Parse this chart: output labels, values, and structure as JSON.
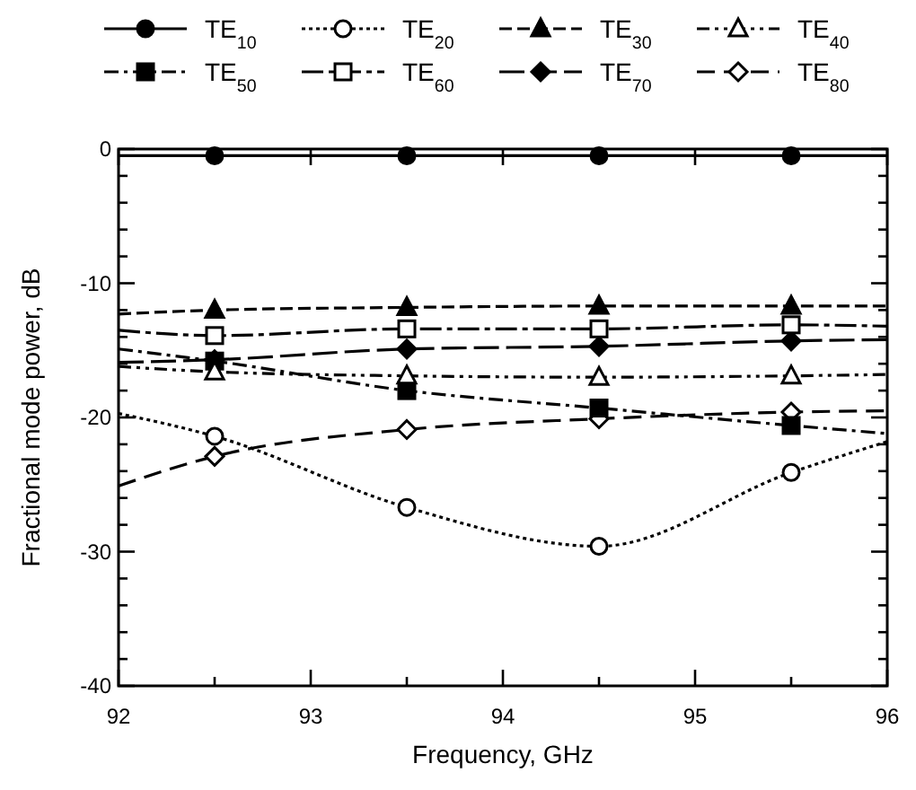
{
  "chart_data": {
    "type": "line",
    "xlabel": "Frequency, GHz",
    "ylabel": "Fractional mode power, dB",
    "x": [
      92,
      92.5,
      93.5,
      94.5,
      95.5,
      96
    ],
    "xlim": [
      92,
      96
    ],
    "xticks": [
      92,
      {
        "value": 92.5,
        "label": null
      },
      93,
      {
        "value": 93.5,
        "label": null
      },
      94,
      {
        "value": 94.5,
        "label": null
      },
      95,
      {
        "value": 95.5,
        "label": null
      },
      96
    ],
    "ylim": [
      -40,
      0
    ],
    "yticks": [
      -40,
      {
        "value": -38,
        "label": null
      },
      {
        "value": -36,
        "label": null
      },
      {
        "value": -34,
        "label": null
      },
      {
        "value": -32,
        "label": null
      },
      -30,
      {
        "value": -28,
        "label": null
      },
      {
        "value": -26,
        "label": null
      },
      {
        "value": -24,
        "label": null
      },
      {
        "value": -22,
        "label": null
      },
      -20,
      {
        "value": -18,
        "label": null
      },
      {
        "value": -16,
        "label": null
      },
      {
        "value": -14,
        "label": null
      },
      {
        "value": -12,
        "label": null
      },
      -10,
      {
        "value": -8,
        "label": null
      },
      {
        "value": -6,
        "label": null
      },
      {
        "value": -4,
        "label": null
      },
      {
        "value": -2,
        "label": null
      },
      0
    ],
    "grid": false,
    "legend": "top",
    "series": [
      {
        "name": "TE$_{10}$",
        "color": "#000000",
        "marker": "circle",
        "line_style": "solid",
        "values": [
          -0.5,
          -0.5,
          -0.5,
          -0.5,
          -0.5,
          -0.5
        ]
      },
      {
        "name": "TE$_{20}$",
        "color": "#000000",
        "marker": "circle",
        "line_style": "dotted",
        "values": [
          -19.7,
          -21.4,
          -26.7,
          -29.6,
          -24.1,
          -21.8
        ]
      },
      {
        "name": "TE$_{30}$",
        "color": "#000000",
        "marker": "triangle",
        "line_style": "dashed",
        "values": [
          -12.3,
          -12,
          -11.8,
          -11.7,
          -11.7,
          -11.7
        ]
      },
      {
        "name": "TE$_{40}$",
        "color": "#000000",
        "marker": "triangle",
        "line_style": "dashed",
        "values": [
          -16.2,
          -16.6,
          -16.9,
          -17,
          -16.9,
          -16.8
        ]
      },
      {
        "name": "TE$_{50}$",
        "color": "#000000",
        "marker": "square",
        "line_style": "dashed",
        "values": [
          -14.9,
          -15.8,
          -18,
          -19.3,
          -20.6,
          -21.2
        ]
      },
      {
        "name": "TE$_{60}$",
        "color": "#000000",
        "marker": "square",
        "line_style": "dashed",
        "values": [
          -13.5,
          -13.9,
          -13.4,
          -13.4,
          -13.1,
          -13.2
        ]
      },
      {
        "name": "TE$_{70}$",
        "color": "#000000",
        "marker": "diamond",
        "line_style": "dashed",
        "values": [
          -15.9,
          -15.7,
          -14.9,
          -14.7,
          -14.3,
          -14.2
        ]
      },
      {
        "name": "TE$_{80}$",
        "color": "#000000",
        "marker": "diamond",
        "line_style": "dashed",
        "values": [
          -25.1,
          -22.9,
          -20.9,
          -20.1,
          -19.6,
          -19.5
        ]
      }
    ]
  }
}
